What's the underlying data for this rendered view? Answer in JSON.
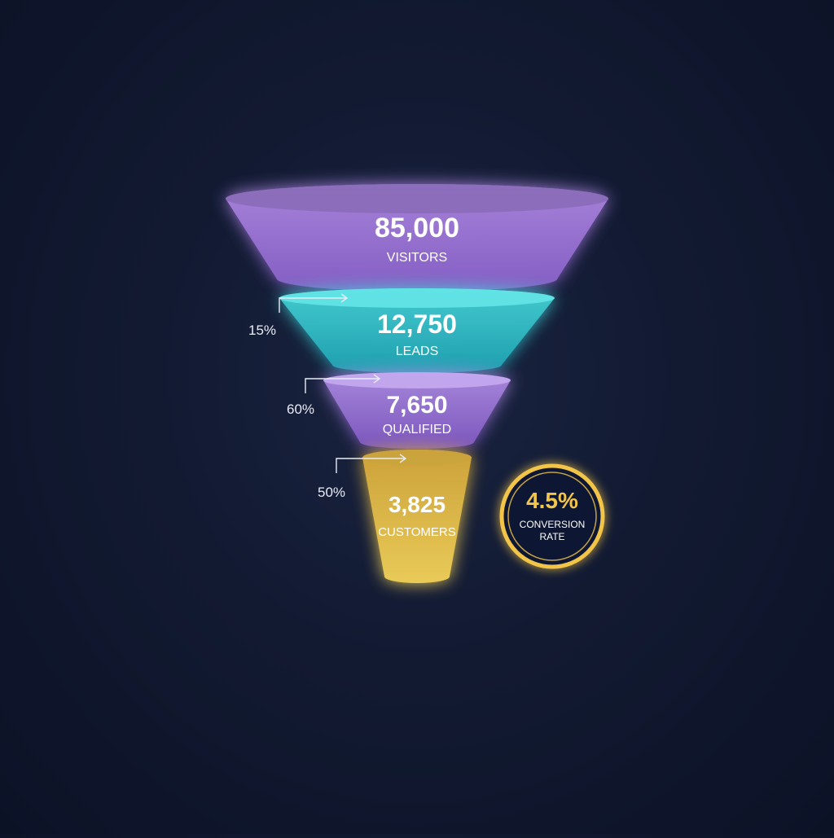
{
  "chart_data": {
    "type": "funnel",
    "stages": [
      {
        "value": 85000,
        "value_label": "85,000",
        "label": "VISITORS",
        "color": "#a67ce0"
      },
      {
        "value": 12750,
        "value_label": "12,750",
        "label": "LEADS",
        "color": "#35c9cf"
      },
      {
        "value": 7650,
        "value_label": "7,650",
        "label": "QUALIFIED",
        "color": "#a57ddf"
      },
      {
        "value": 3825,
        "value_label": "3,825",
        "label": "CUSTOMERS",
        "color": "#e6bf45"
      }
    ],
    "step_rates": [
      "15%",
      "60%",
      "50%"
    ],
    "overall": {
      "value": "4.5%",
      "label_line1": "CONVERSION",
      "label_line2": "RATE",
      "color": "#f2c54a"
    }
  }
}
